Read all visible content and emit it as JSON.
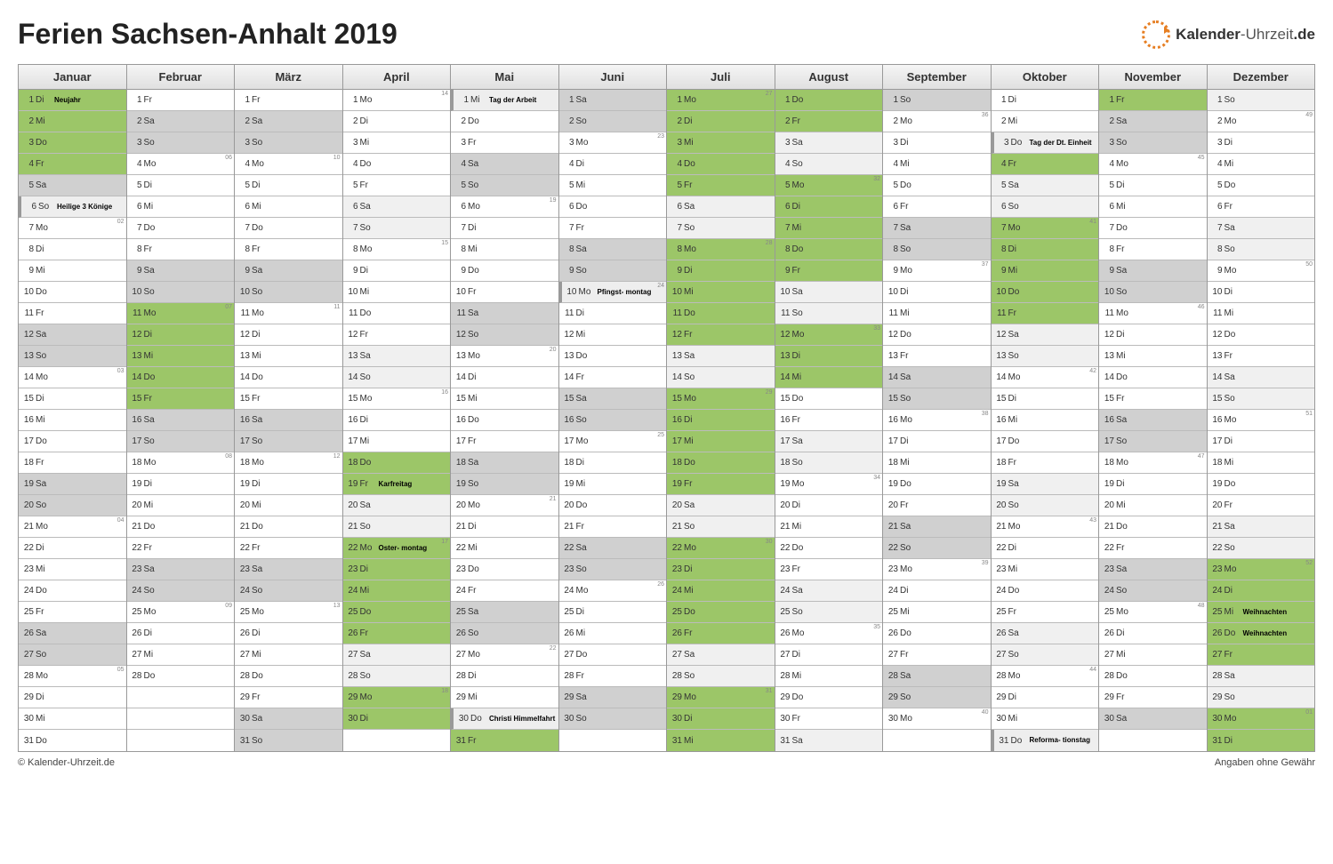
{
  "title": "Ferien Sachsen-Anhalt 2019",
  "logo": "Kalender-Uhrzeit.de",
  "copyright": "© Kalender-Uhrzeit.de",
  "disclaimer": "Angaben ohne Gewähr",
  "dowNames": {
    "1": "Mo",
    "2": "Di",
    "3": "Mi",
    "4": "Do",
    "5": "Fr",
    "6": "Sa",
    "7": "So"
  },
  "months": [
    {
      "name": "Januar",
      "start": 2,
      "len": 31,
      "vac": [
        1,
        2,
        3,
        4
      ],
      "hol": [
        {
          "d": 1,
          "t": "Neujahr"
        },
        {
          "d": 6,
          "t": "Heilige 3 Könige"
        }
      ],
      "wk": {
        "7": "02",
        "14": "03",
        "21": "04",
        "28": "05"
      }
    },
    {
      "name": "Februar",
      "start": 5,
      "len": 28,
      "vac": [
        11,
        12,
        13,
        14,
        15
      ],
      "hol": [],
      "wk": {
        "4": "06",
        "11": "07",
        "18": "08",
        "25": "09"
      }
    },
    {
      "name": "März",
      "start": 5,
      "len": 31,
      "vac": [],
      "hol": [],
      "wk": {
        "4": "10",
        "11": "11",
        "18": "12",
        "25": "13"
      }
    },
    {
      "name": "April",
      "start": 1,
      "len": 30,
      "vac": [
        18,
        19,
        22,
        23,
        24,
        25,
        26,
        29,
        30
      ],
      "light": [
        6,
        7,
        13,
        14,
        20,
        21,
        27,
        28
      ],
      "hol": [
        {
          "d": 19,
          "t": "Karfreitag"
        },
        {
          "d": 22,
          "t": "Oster- montag"
        }
      ],
      "wk": {
        "1": "14",
        "8": "15",
        "15": "16",
        "22": "17",
        "29": "18"
      }
    },
    {
      "name": "Mai",
      "start": 3,
      "len": 31,
      "vac": [
        31
      ],
      "hol": [
        {
          "d": 1,
          "t": "Tag der Arbeit"
        },
        {
          "d": 30,
          "t": "Christi Himmelfahrt"
        }
      ],
      "wk": {
        "6": "19",
        "13": "20",
        "20": "21",
        "27": "22"
      }
    },
    {
      "name": "Juni",
      "start": 6,
      "len": 30,
      "vac": [],
      "hol": [
        {
          "d": 10,
          "t": "Pfingst- montag"
        }
      ],
      "wk": {
        "3": "23",
        "10": "24",
        "17": "25",
        "24": "26"
      }
    },
    {
      "name": "Juli",
      "start": 1,
      "len": 31,
      "vac": [
        1,
        2,
        3,
        4,
        5,
        8,
        9,
        10,
        11,
        12,
        15,
        16,
        17,
        18,
        19,
        22,
        23,
        24,
        25,
        26,
        29,
        30,
        31
      ],
      "lightwe": true,
      "hol": [],
      "wk": {
        "1": "27",
        "8": "28",
        "15": "29",
        "22": "30",
        "29": "31"
      }
    },
    {
      "name": "August",
      "start": 4,
      "len": 31,
      "vac": [
        1,
        2,
        5,
        6,
        7,
        8,
        9,
        12,
        13,
        14
      ],
      "lightwe": true,
      "hol": [],
      "wk": {
        "5": "32",
        "12": "33",
        "19": "34",
        "26": "35"
      }
    },
    {
      "name": "September",
      "start": 7,
      "len": 30,
      "vac": [],
      "hol": [],
      "wk": {
        "2": "36",
        "9": "37",
        "16": "38",
        "23": "39",
        "30": "40"
      }
    },
    {
      "name": "Oktober",
      "start": 2,
      "len": 31,
      "vac": [
        4,
        7,
        8,
        9,
        10,
        11
      ],
      "lightwe": true,
      "hol": [
        {
          "d": 3,
          "t": "Tag der Dt. Einheit"
        },
        {
          "d": 31,
          "t": "Reforma- tionstag"
        }
      ],
      "wk": {
        "7": "41",
        "14": "42",
        "21": "43",
        "28": "44"
      }
    },
    {
      "name": "November",
      "start": 5,
      "len": 30,
      "vac": [
        1
      ],
      "hol": [],
      "wk": {
        "4": "45",
        "11": "46",
        "18": "47",
        "25": "48"
      }
    },
    {
      "name": "Dezember",
      "start": 7,
      "len": 31,
      "vac": [
        23,
        24,
        25,
        26,
        27,
        30,
        31
      ],
      "lightwe": true,
      "hol": [
        {
          "d": 25,
          "t": "Weihnachten"
        },
        {
          "d": 26,
          "t": "Weihnachten"
        }
      ],
      "wk": {
        "2": "49",
        "9": "50",
        "16": "51",
        "23": "52",
        "30": "01"
      }
    }
  ]
}
